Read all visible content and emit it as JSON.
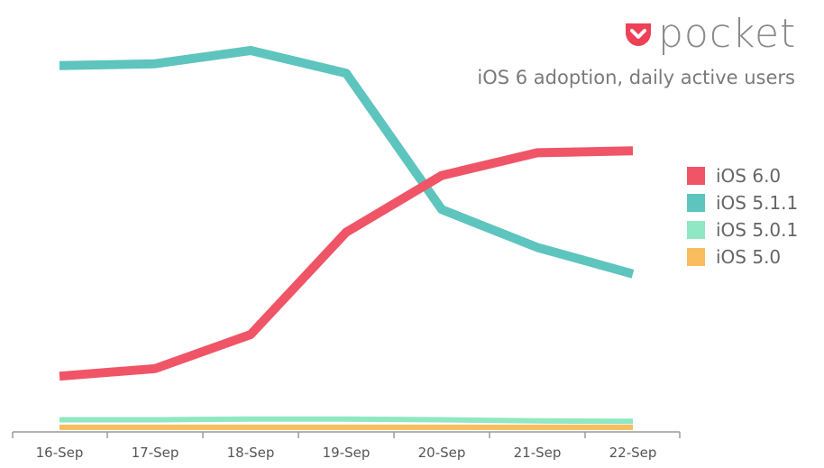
{
  "brand": {
    "name": "pocket",
    "color": "#ee4056",
    "icon": "pocket-logo-icon"
  },
  "chart_data": {
    "type": "line",
    "title": "iOS 6 adoption, daily active users",
    "xlabel": "",
    "ylabel": "",
    "grid": false,
    "legend_position": "right",
    "categories": [
      "16-Sep",
      "17-Sep",
      "18-Sep",
      "19-Sep",
      "20-Sep",
      "21-Sep",
      "22-Sep"
    ],
    "ylim": [
      0,
      100
    ],
    "series": [
      {
        "name": "iOS 6.0",
        "color": "#ef5567",
        "values": [
          14,
          16,
          25,
          52,
          67,
          73,
          73.5
        ]
      },
      {
        "name": "iOS 5.1.1",
        "color": "#5ec4be",
        "values": [
          96,
          96.5,
          100,
          94,
          58,
          48,
          41
        ]
      },
      {
        "name": "iOS 5.0.1",
        "color": "#90e8c3",
        "values": [
          2.5,
          2.5,
          2.7,
          2.7,
          2.5,
          2.2,
          2.1
        ]
      },
      {
        "name": "iOS 5.0",
        "color": "#f7bd5f",
        "values": [
          0.5,
          0.5,
          0.5,
          0.5,
          0.5,
          0.5,
          0.5
        ]
      }
    ]
  }
}
